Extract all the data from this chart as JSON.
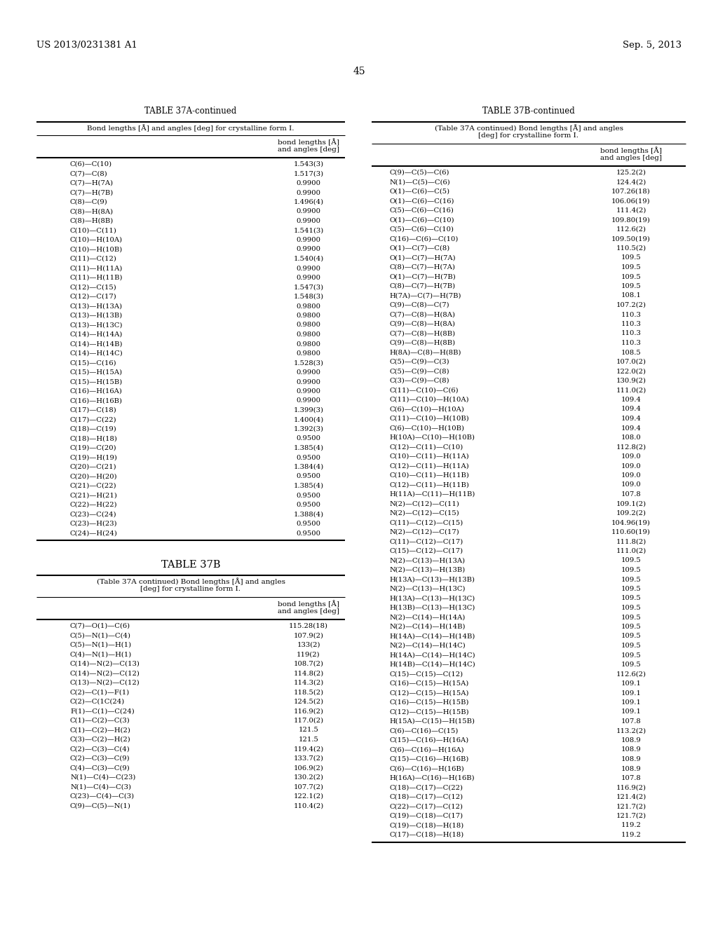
{
  "header_left": "US 2013/0231381 A1",
  "header_right": "Sep. 5, 2013",
  "page_number": "45",
  "table_37A_continued_title": "TABLE 37A-continued",
  "table_37A_subtitle": "Bond lengths [Å] and angles [deg] for crystalline form I.",
  "table_37A_col_header": "bond lengths [Å]\nand angles [deg]",
  "table_37A_data": [
    [
      "C(6)—C(10)",
      "1.543(3)"
    ],
    [
      "C(7)—C(8)",
      "1.517(3)"
    ],
    [
      "C(7)—H(7A)",
      "0.9900"
    ],
    [
      "C(7)—H(7B)",
      "0.9900"
    ],
    [
      "C(8)—C(9)",
      "1.496(4)"
    ],
    [
      "C(8)—H(8A)",
      "0.9900"
    ],
    [
      "C(8)—H(8B)",
      "0.9900"
    ],
    [
      "C(10)—C(11)",
      "1.541(3)"
    ],
    [
      "C(10)—H(10A)",
      "0.9900"
    ],
    [
      "C(10)—H(10B)",
      "0.9900"
    ],
    [
      "C(11)—C(12)",
      "1.540(4)"
    ],
    [
      "C(11)—H(11A)",
      "0.9900"
    ],
    [
      "C(11)—H(11B)",
      "0.9900"
    ],
    [
      "C(12)—C(15)",
      "1.547(3)"
    ],
    [
      "C(12)—C(17)",
      "1.548(3)"
    ],
    [
      "C(13)—H(13A)",
      "0.9800"
    ],
    [
      "C(13)—H(13B)",
      "0.9800"
    ],
    [
      "C(13)—H(13C)",
      "0.9800"
    ],
    [
      "C(14)—H(14A)",
      "0.9800"
    ],
    [
      "C(14)—H(14B)",
      "0.9800"
    ],
    [
      "C(14)—H(14C)",
      "0.9800"
    ],
    [
      "C(15)—C(16)",
      "1.528(3)"
    ],
    [
      "C(15)—H(15A)",
      "0.9900"
    ],
    [
      "C(15)—H(15B)",
      "0.9900"
    ],
    [
      "C(16)—H(16A)",
      "0.9900"
    ],
    [
      "C(16)—H(16B)",
      "0.9900"
    ],
    [
      "C(17)—C(18)",
      "1.399(3)"
    ],
    [
      "C(17)—C(22)",
      "1.400(4)"
    ],
    [
      "C(18)—C(19)",
      "1.392(3)"
    ],
    [
      "C(18)—H(18)",
      "0.9500"
    ],
    [
      "C(19)—C(20)",
      "1.385(4)"
    ],
    [
      "C(19)—H(19)",
      "0.9500"
    ],
    [
      "C(20)—C(21)",
      "1.384(4)"
    ],
    [
      "C(20)—H(20)",
      "0.9500"
    ],
    [
      "C(21)—C(22)",
      "1.385(4)"
    ],
    [
      "C(21)—H(21)",
      "0.9500"
    ],
    [
      "C(22)—H(22)",
      "0.9500"
    ],
    [
      "C(23)—C(24)",
      "1.388(4)"
    ],
    [
      "C(23)—H(23)",
      "0.9500"
    ],
    [
      "C(24)—H(24)",
      "0.9500"
    ]
  ],
  "table_37B_title": "TABLE 37B",
  "table_37B_subtitle": "(Table 37A continued) Bond lengths [Å] and angles\n[deg] for crystalline form I.",
  "table_37B_col_header": "bond lengths [Å]\nand angles [deg]",
  "table_37B_data": [
    [
      "C(7)—O(1)—C(6)",
      "115.28(18)"
    ],
    [
      "C(5)—N(1)—C(4)",
      "107.9(2)"
    ],
    [
      "C(5)—N(1)—H(1)",
      "133(2)"
    ],
    [
      "C(4)—N(1)—H(1)",
      "119(2)"
    ],
    [
      "C(14)—N(2)—C(13)",
      "108.7(2)"
    ],
    [
      "C(14)—N(2)—C(12)",
      "114.8(2)"
    ],
    [
      "C(13)—N(2)—C(12)",
      "114.3(2)"
    ],
    [
      "C(2)—C(1)—F(1)",
      "118.5(2)"
    ],
    [
      "C(2)—C(1C(24)",
      "124.5(2)"
    ],
    [
      "F(1)—C(1)—C(24)",
      "116.9(2)"
    ],
    [
      "C(1)—C(2)—C(3)",
      "117.0(2)"
    ],
    [
      "C(1)—C(2)—H(2)",
      "121.5"
    ],
    [
      "C(3)—C(2)—H(2)",
      "121.5"
    ],
    [
      "C(2)—C(3)—C(4)",
      "119.4(2)"
    ],
    [
      "C(2)—C(3)—C(9)",
      "133.7(2)"
    ],
    [
      "C(4)—C(3)—C(9)",
      "106.9(2)"
    ],
    [
      "N(1)—C(4)—C(23)",
      "130.2(2)"
    ],
    [
      "N(1)—C(4)—C(3)",
      "107.7(2)"
    ],
    [
      "C(23)—C(4)—C(3)",
      "122.1(2)"
    ],
    [
      "C(9)—C(5)—N(1)",
      "110.4(2)"
    ]
  ],
  "table_37B_continued_title": "TABLE 37B-continued",
  "table_37B_continued_subtitle": "(Table 37A continued) Bond lengths [Å] and angles\n[deg] for crystalline form I.",
  "table_37B_continued_col_header": "bond lengths [Å]\nand angles [deg]",
  "table_37B_continued_data": [
    [
      "C(9)—C(5)—C(6)",
      "125.2(2)"
    ],
    [
      "N(1)—C(5)—C(6)",
      "124.4(2)"
    ],
    [
      "O(1)—C(6)—C(5)",
      "107.26(18)"
    ],
    [
      "O(1)—C(6)—C(16)",
      "106.06(19)"
    ],
    [
      "C(5)—C(6)—C(16)",
      "111.4(2)"
    ],
    [
      "O(1)—C(6)—C(10)",
      "109.80(19)"
    ],
    [
      "C(5)—C(6)—C(10)",
      "112.6(2)"
    ],
    [
      "C(16)—C(6)—C(10)",
      "109.50(19)"
    ],
    [
      "O(1)—C(7)—C(8)",
      "110.5(2)"
    ],
    [
      "O(1)—C(7)—H(7A)",
      "109.5"
    ],
    [
      "C(8)—C(7)—H(7A)",
      "109.5"
    ],
    [
      "O(1)—C(7)—H(7B)",
      "109.5"
    ],
    [
      "C(8)—C(7)—H(7B)",
      "109.5"
    ],
    [
      "H(7A)—C(7)—H(7B)",
      "108.1"
    ],
    [
      "C(9)—C(8)—C(7)",
      "107.2(2)"
    ],
    [
      "C(7)—C(8)—H(8A)",
      "110.3"
    ],
    [
      "C(9)—C(8)—H(8A)",
      "110.3"
    ],
    [
      "C(7)—C(8)—H(8B)",
      "110.3"
    ],
    [
      "C(9)—C(8)—H(8B)",
      "110.3"
    ],
    [
      "H(8A)—C(8)—H(8B)",
      "108.5"
    ],
    [
      "C(5)—C(9)—C(3)",
      "107.0(2)"
    ],
    [
      "C(5)—C(9)—C(8)",
      "122.0(2)"
    ],
    [
      "C(3)—C(9)—C(8)",
      "130.9(2)"
    ],
    [
      "C(11)—C(10)—C(6)",
      "111.0(2)"
    ],
    [
      "C(11)—C(10)—H(10A)",
      "109.4"
    ],
    [
      "C(6)—C(10)—H(10A)",
      "109.4"
    ],
    [
      "C(11)—C(10)—H(10B)",
      "109.4"
    ],
    [
      "C(6)—C(10)—H(10B)",
      "109.4"
    ],
    [
      "H(10A)—C(10)—H(10B)",
      "108.0"
    ],
    [
      "C(12)—C(11)—C(10)",
      "112.8(2)"
    ],
    [
      "C(10)—C(11)—H(11A)",
      "109.0"
    ],
    [
      "C(12)—C(11)—H(11A)",
      "109.0"
    ],
    [
      "C(10)—C(11)—H(11B)",
      "109.0"
    ],
    [
      "C(12)—C(11)—H(11B)",
      "109.0"
    ],
    [
      "H(11A)—C(11)—H(11B)",
      "107.8"
    ],
    [
      "N(2)—C(12)—C(11)",
      "109.1(2)"
    ],
    [
      "N(2)—C(12)—C(15)",
      "109.2(2)"
    ],
    [
      "C(11)—C(12)—C(15)",
      "104.96(19)"
    ],
    [
      "N(2)—C(12)—C(17)",
      "110.60(19)"
    ],
    [
      "C(11)—C(12)—C(17)",
      "111.8(2)"
    ],
    [
      "C(15)—C(12)—C(17)",
      "111.0(2)"
    ],
    [
      "N(2)—C(13)—H(13A)",
      "109.5"
    ],
    [
      "N(2)—C(13)—H(13B)",
      "109.5"
    ],
    [
      "H(13A)—C(13)—H(13B)",
      "109.5"
    ],
    [
      "N(2)—C(13)—H(13C)",
      "109.5"
    ],
    [
      "H(13A)—C(13)—H(13C)",
      "109.5"
    ],
    [
      "H(13B)—C(13)—H(13C)",
      "109.5"
    ],
    [
      "N(2)—C(14)—H(14A)",
      "109.5"
    ],
    [
      "N(2)—C(14)—H(14B)",
      "109.5"
    ],
    [
      "H(14A)—C(14)—H(14B)",
      "109.5"
    ],
    [
      "N(2)—C(14)—H(14C)",
      "109.5"
    ],
    [
      "H(14A)—C(14)—H(14C)",
      "109.5"
    ],
    [
      "H(14B)—C(14)—H(14C)",
      "109.5"
    ],
    [
      "C(15)—C(15)—C(12)",
      "112.6(2)"
    ],
    [
      "C(16)—C(15)—H(15A)",
      "109.1"
    ],
    [
      "C(12)—C(15)—H(15A)",
      "109.1"
    ],
    [
      "C(16)—C(15)—H(15B)",
      "109.1"
    ],
    [
      "C(12)—C(15)—H(15B)",
      "109.1"
    ],
    [
      "H(15A)—C(15)—H(15B)",
      "107.8"
    ],
    [
      "C(6)—C(16)—C(15)",
      "113.2(2)"
    ],
    [
      "C(15)—C(16)—H(16A)",
      "108.9"
    ],
    [
      "C(6)—C(16)—H(16A)",
      "108.9"
    ],
    [
      "C(15)—C(16)—H(16B)",
      "108.9"
    ],
    [
      "C(6)—C(16)—H(16B)",
      "108.9"
    ],
    [
      "H(16A)—C(16)—H(16B)",
      "107.8"
    ],
    [
      "C(18)—C(17)—C(22)",
      "116.9(2)"
    ],
    [
      "C(18)—C(17)—C(12)",
      "121.4(2)"
    ],
    [
      "C(22)—C(17)—C(12)",
      "121.7(2)"
    ],
    [
      "C(19)—C(18)—C(17)",
      "121.7(2)"
    ],
    [
      "C(19)—C(18)—H(18)",
      "119.2"
    ],
    [
      "C(17)—C(18)—H(18)",
      "119.2"
    ]
  ]
}
